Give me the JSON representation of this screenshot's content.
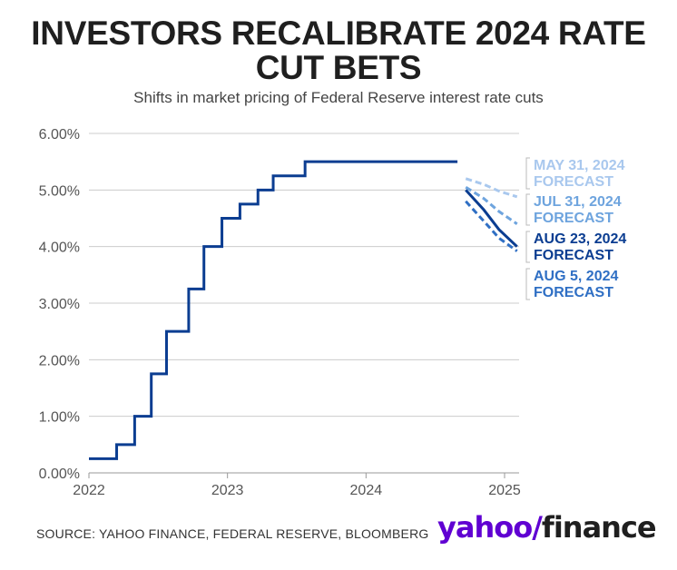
{
  "title_line1": "INVESTORS RECALIBRATE 2024 RATE",
  "title_line2": "CUT BETS",
  "subtitle": "Shifts in market pricing of Federal Reserve interest rate cuts",
  "source": "SOURCE: YAHOO FINANCE, FEDERAL RESERVE, BLOOMBERG",
  "logo": {
    "yahoo": "yahoo",
    "bang": "/",
    "finance": "finance"
  },
  "colors": {
    "main": "#0b3d91",
    "may": "#a9c8ee",
    "jul": "#6ea4de",
    "aug23": "#0b3d91",
    "aug5": "#2f6fc4",
    "grid": "#cccccc"
  },
  "chart_data": {
    "type": "line",
    "title": "INVESTORS RECALIBRATE 2024 RATE CUT BETS",
    "subtitle": "Shifts in market pricing of Federal Reserve interest rate cuts",
    "y_ticks": [
      "0.00%",
      "1.00%",
      "2.00%",
      "3.00%",
      "4.00%",
      "5.00%",
      "6.00%"
    ],
    "x_ticks": [
      "2022",
      "2023",
      "2024",
      "2025"
    ],
    "ylim": [
      0,
      6
    ],
    "grid": true,
    "series": [
      {
        "key": "fed_rate",
        "style": "solid",
        "step": true,
        "points": [
          [
            2022.0,
            0.25
          ],
          [
            2022.2,
            0.5
          ],
          [
            2022.33,
            1.0
          ],
          [
            2022.45,
            1.75
          ],
          [
            2022.56,
            2.5
          ],
          [
            2022.72,
            3.25
          ],
          [
            2022.83,
            4.0
          ],
          [
            2022.96,
            4.5
          ],
          [
            2023.09,
            4.75
          ],
          [
            2023.22,
            5.0
          ],
          [
            2023.33,
            5.25
          ],
          [
            2023.56,
            5.5
          ],
          [
            2024.66,
            5.5
          ]
        ]
      },
      {
        "key": "may",
        "name": "MAY 31, 2024 FORECAST",
        "style": "dashed",
        "points": [
          [
            2024.72,
            5.2
          ],
          [
            2024.85,
            5.1
          ],
          [
            2024.96,
            4.98
          ],
          [
            2025.09,
            4.88
          ]
        ]
      },
      {
        "key": "jul",
        "name": "JUL 31, 2024 FORECAST",
        "style": "dashed",
        "points": [
          [
            2024.72,
            5.05
          ],
          [
            2024.85,
            4.85
          ],
          [
            2024.96,
            4.62
          ],
          [
            2025.09,
            4.4
          ]
        ]
      },
      {
        "key": "aug23",
        "name": "AUG 23, 2024 FORECAST",
        "style": "solid",
        "points": [
          [
            2024.72,
            5.0
          ],
          [
            2024.85,
            4.65
          ],
          [
            2024.96,
            4.3
          ],
          [
            2025.09,
            4.0
          ]
        ]
      },
      {
        "key": "aug5",
        "name": "AUG 5, 2024 FORECAST",
        "style": "dashed",
        "points": [
          [
            2024.72,
            4.8
          ],
          [
            2024.85,
            4.45
          ],
          [
            2024.96,
            4.15
          ],
          [
            2025.09,
            3.92
          ]
        ]
      }
    ]
  }
}
